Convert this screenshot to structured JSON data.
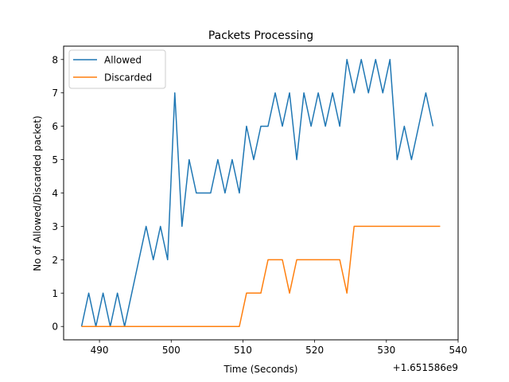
{
  "chart_data": {
    "type": "line",
    "title": "Packets Processing",
    "xlabel": "Time (Seconds)",
    "ylabel": "No of Allowed/Discarded packet)",
    "x_offset_label": "+1.651586e9",
    "xlim": [
      485,
      540
    ],
    "ylim": [
      -0.4,
      8.4
    ],
    "xticks": [
      490,
      500,
      510,
      520,
      530,
      540
    ],
    "yticks": [
      0,
      1,
      2,
      3,
      4,
      5,
      6,
      7,
      8
    ],
    "grid": false,
    "legend_position": "upper-left",
    "series": [
      {
        "name": "Allowed",
        "color": "#1f77b4",
        "x": [
          487.5,
          488.5,
          489.5,
          490.5,
          491.5,
          492.5,
          493.5,
          494.5,
          495.5,
          496.5,
          497.5,
          498.5,
          499.5,
          500.5,
          501.5,
          502.5,
          503.5,
          504.5,
          505.5,
          506.5,
          507.5,
          508.5,
          509.5,
          510.5,
          511.5,
          512.5,
          513.5,
          514.5,
          515.5,
          516.5,
          517.5,
          518.5,
          519.5,
          520.5,
          521.5,
          522.5,
          523.5,
          524.5,
          525.5,
          526.5,
          527.5,
          528.5,
          529.5,
          530.5,
          531.5,
          532.5,
          533.5,
          534.5,
          535.5,
          536.5
        ],
        "values": [
          0,
          1,
          0,
          1,
          0,
          1,
          0,
          1,
          2,
          3,
          2,
          3,
          2,
          7,
          3,
          5,
          4,
          4,
          4,
          5,
          4,
          5,
          4,
          6,
          5,
          6,
          6,
          7,
          6,
          7,
          5,
          7,
          6,
          7,
          6,
          7,
          6,
          8,
          7,
          8,
          7,
          8,
          7,
          8,
          5,
          6,
          5,
          6,
          7,
          6
        ]
      },
      {
        "name": "Discarded",
        "color": "#ff7f0e",
        "x": [
          487.5,
          509.5,
          510.5,
          512.5,
          513.5,
          515.5,
          516.5,
          517.5,
          523.5,
          524.5,
          525.5,
          537.5
        ],
        "values": [
          0,
          0,
          1,
          1,
          2,
          2,
          1,
          2,
          2,
          1,
          3,
          3
        ]
      }
    ]
  }
}
